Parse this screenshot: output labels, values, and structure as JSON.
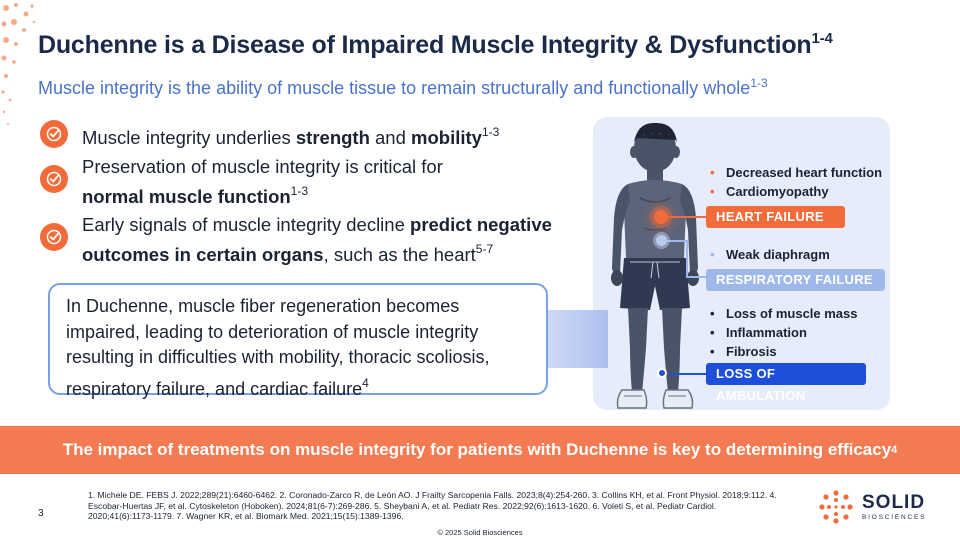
{
  "slide": {
    "title": "Duchenne is a Disease of Impaired Muscle Integrity & Dysfunction",
    "title_sup": "1-4",
    "subtitle": "Muscle integrity is the ability of muscle tissue to remain structurally and functionally whole",
    "subtitle_sup": "1-3",
    "page_number": "3",
    "copyright": "© 2025 Solid Biosciences"
  },
  "bullets": [
    {
      "text_a": "Muscle integrity underlies ",
      "bold_a": "strength",
      "text_b": " and ",
      "bold_b": "mobility",
      "sup": "1-3"
    },
    {
      "line1": "Preservation of muscle integrity is critical for",
      "bold": "normal muscle function",
      "sup": "1-3"
    },
    {
      "text_a": "Early signals of muscle integrity decline ",
      "bold_a": "predict negative",
      "bold_b": "outcomes in certain organs",
      "text_b": ", such as the heart",
      "sup": "5-7"
    }
  ],
  "callout": {
    "text": "In Duchenne, muscle fiber regeneration becomes impaired, leading to deterioration of muscle integrity resulting in difficulties with mobility, thoracic scoliosis, respiratory failure, and cardiac failure",
    "sup": "4"
  },
  "panel": {
    "heart": {
      "items": [
        "Decreased heart function",
        "Cardiomyopathy"
      ],
      "tag": "HEART FAILURE"
    },
    "respiratory": {
      "items": [
        "Weak diaphragm"
      ],
      "tag": "RESPIRATORY FAILURE"
    },
    "ambulation": {
      "items": [
        "Loss of muscle mass",
        "Inflammation",
        "Fibrosis"
      ],
      "tag": "LOSS OF AMBULATION"
    }
  },
  "banner": {
    "text": "The impact of treatments on muscle integrity for patients with Duchenne is key to determining efficacy",
    "sup": "4"
  },
  "references": {
    "text": "1. Michele DE. FEBS J. 2022;289(21):6460-6462. 2. Coronado-Zarco R, de León AO. J Frailty Sarcopenia Falls. 2023;8(4):254-260. 3. Collins KH, et al. Front Physiol. 2018;9:112. 4. Escobar-Huertas JF, et al. Cytoskeleton (Hoboken). 2024;81(6-7):269-286. 5. Sheybani A, et al. Pediatr Res. 2022;92(6):1613-1620. 6. Voleti S, et al. Pediatr Cardiol. 2020;41(6):1173-1179. 7. Wagner KR, et al. Biomark Med. 2021;15(15):1389-1396."
  },
  "logo": {
    "name": "SOLID",
    "sub": "BIOSCIENCES"
  },
  "colors": {
    "title": "#1c2a4a",
    "subtitle": "#4a73c8",
    "accent_orange": "#f26b3a",
    "banner": "#f47a52",
    "respiratory": "#9fb8ea",
    "ambulation": "#1d4fd8",
    "panel_bg": "#e6ecfa"
  },
  "icons": {
    "bullet": "check-circle-icon",
    "illustration": "boy-figure-illustration",
    "logo": "solid-dots-logo-icon"
  }
}
